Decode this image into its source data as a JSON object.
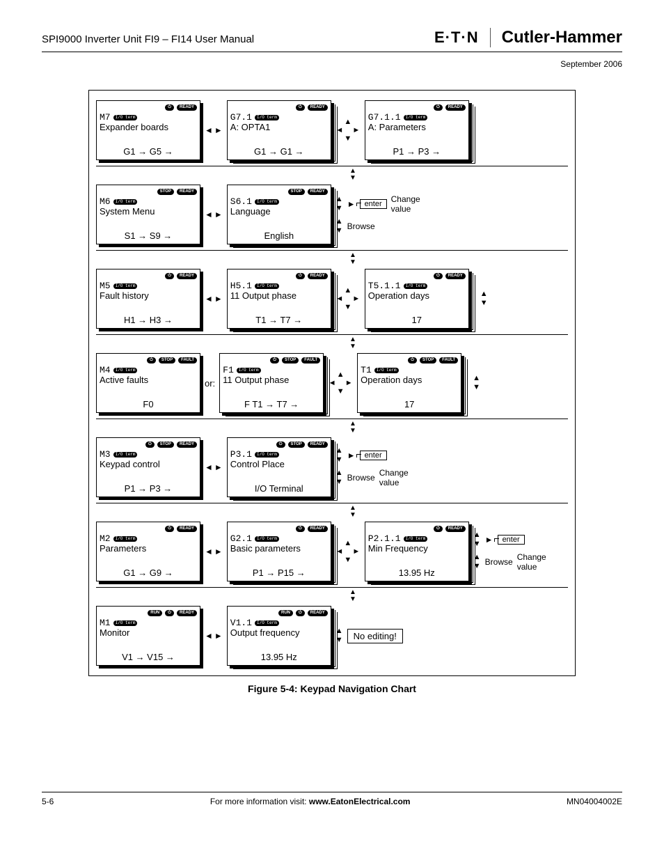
{
  "header": {
    "manual": "SPI9000 Inverter Unit FI9 – FI14 User Manual",
    "brand1": "E·T·N",
    "brand2": "Cutler-Hammer",
    "date": "September 2006"
  },
  "figure_caption": "Figure 5-4: Keypad Navigation Chart",
  "footer": {
    "page": "5-6",
    "center_pre": "For more information visit: ",
    "center_link": "www.EatonElectrical.com",
    "doc": "MN04004002E"
  },
  "labels": {
    "change_value": "Change value",
    "browse": "Browse",
    "no_edit": "No editing!",
    "or": "or:",
    "enter": "enter"
  },
  "rows": [
    {
      "screens": [
        {
          "badges": [
            "⏻",
            "READY"
          ],
          "code": "M7",
          "io": true,
          "label": "Expander boards",
          "range": "G1 → G5 →",
          "stack": 0
        },
        {
          "badges": [
            "⏻",
            "READY"
          ],
          "code": "G7.1",
          "io": true,
          "label": "A: OPTA1",
          "range": "G1 → G1 →",
          "stack": 2
        },
        {
          "badges": [
            "⏻",
            "READY"
          ],
          "code": "G7.1.1",
          "io": true,
          "label": "A: Parameters",
          "range": "P1 → P3 →",
          "stack": 2
        }
      ],
      "navs": [
        "lr",
        "cross"
      ],
      "actions": null
    },
    {
      "screens": [
        {
          "badges": [
            "STOP",
            "READY"
          ],
          "code": "M6",
          "io": true,
          "label": "System Menu",
          "range": "S1 → S9 →",
          "stack": 0
        },
        {
          "badges": [
            "STOP",
            "READY"
          ],
          "code": "S6.1",
          "io": true,
          "label": "Language",
          "range": "English",
          "stack": 2
        }
      ],
      "navs": [
        "lr"
      ],
      "actions": [
        {
          "type": "enter_change"
        },
        {
          "type": "browse"
        }
      ]
    },
    {
      "screens": [
        {
          "badges": [
            "⏻",
            "READY"
          ],
          "code": "M5",
          "io": true,
          "label": "Fault history",
          "range": "H1 → H3 →",
          "stack": 0
        },
        {
          "badges": [
            "⏻",
            "READY"
          ],
          "code": "H5.1",
          "io": true,
          "label": "11 Output phase",
          "range": "T1 → T7 →",
          "stack": 2
        },
        {
          "badges": [
            "⏻",
            "READY"
          ],
          "code": "T5.1.1",
          "io": true,
          "label": "Operation days",
          "range": "17",
          "stack": 2
        }
      ],
      "navs": [
        "lr",
        "cross"
      ],
      "tail_arrows": true
    },
    {
      "or": true,
      "screens": [
        {
          "badges": [
            "⏻",
            "STOP",
            "FAULT"
          ],
          "code": "M4",
          "io": true,
          "label": "Active faults",
          "range": "F0",
          "stack": 0
        },
        {
          "badges": [
            "⏻",
            "STOP",
            "FAULT"
          ],
          "code": "F1",
          "io": true,
          "label": "11 Output phase",
          "range": "F      T1 → T7 →",
          "stack": 2
        },
        {
          "badges": [
            "⏻",
            "STOP",
            "FAULT"
          ],
          "code": "T1",
          "io": true,
          "label": "Operation days",
          "range": "17",
          "stack": 2
        }
      ],
      "navs": [
        null,
        "cross"
      ],
      "tail_arrows": true
    },
    {
      "screens": [
        {
          "badges": [
            "⏻",
            "STOP",
            "READY"
          ],
          "code": "M3",
          "io": true,
          "label": "Keypad control",
          "range": "P1 → P3 →",
          "stack": 0
        },
        {
          "badges": [
            "⏻",
            "STOP",
            "READY"
          ],
          "code": "P3.1",
          "io": true,
          "label": "Control Place",
          "range": "I/O Terminal",
          "stack": 2
        }
      ],
      "navs": [
        "lr"
      ],
      "actions": [
        {
          "type": "enter"
        },
        {
          "type": "browse_change"
        }
      ]
    },
    {
      "screens": [
        {
          "badges": [
            "⏻",
            "READY"
          ],
          "code": "M2",
          "io": true,
          "label": "Parameters",
          "range": "G1 → G9 →",
          "stack": 0
        },
        {
          "badges": [
            "⏻",
            "READY"
          ],
          "code": "G2.1",
          "io": true,
          "label": "Basic parameters",
          "range": "P1 → P15 →",
          "stack": 2
        },
        {
          "badges": [
            "⏻",
            "READY"
          ],
          "code": "P2.1.1",
          "io": true,
          "label": "Min Frequency",
          "range": "13.95 Hz",
          "stack": 2
        }
      ],
      "navs": [
        "lr",
        "cross"
      ],
      "actions": [
        {
          "type": "enter"
        },
        {
          "type": "browse_change"
        }
      ]
    },
    {
      "screens": [
        {
          "badges": [
            "RUN",
            "⏻",
            "READY"
          ],
          "code": "M1",
          "io": true,
          "label": "Monitor",
          "range": "V1 → V15 →",
          "stack": 0
        },
        {
          "badges": [
            "RUN",
            "⏻",
            "READY"
          ],
          "code": "V1.1",
          "io": true,
          "label": "Output frequency",
          "range": "13.95 Hz",
          "stack": 2
        }
      ],
      "navs": [
        "lr"
      ],
      "no_edit": true,
      "tail_arrows_left": true
    }
  ]
}
